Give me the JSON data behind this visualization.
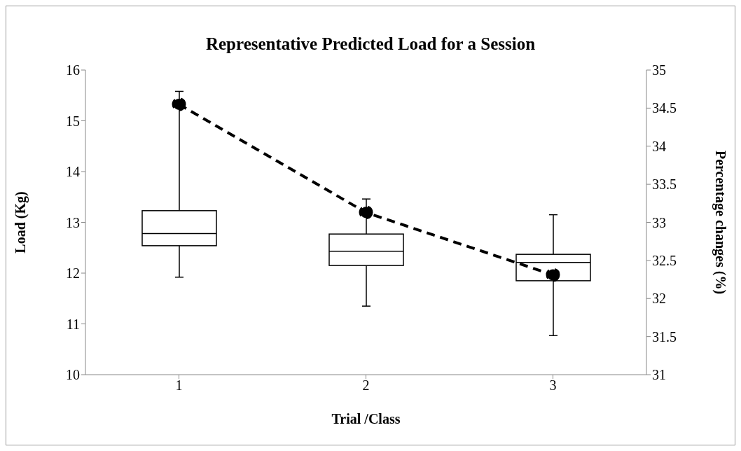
{
  "chart_data": {
    "type": "box",
    "title": "Representative Predicted Load for a Session",
    "xlabel": "Trial /Class",
    "ylabel": "Load (Kg)",
    "y2label": "Percentage changes (%)",
    "categories": [
      "1",
      "2",
      "3"
    ],
    "ylim": [
      10,
      16
    ],
    "yticks": [
      10,
      11,
      12,
      13,
      14,
      15,
      16
    ],
    "y2lim": [
      31,
      35
    ],
    "y2ticks": [
      31,
      31.5,
      32,
      32.5,
      33,
      33.5,
      34,
      34.5,
      35
    ],
    "grid": false,
    "series": [
      {
        "color": "#000000",
        "boxes": [
          {
            "low": 11.92,
            "q1": 12.54,
            "median": 12.78,
            "q3": 13.23,
            "high": 15.58
          },
          {
            "low": 11.35,
            "q1": 12.15,
            "median": 12.43,
            "q3": 12.77,
            "high": 13.46
          },
          {
            "low": 10.77,
            "q1": 11.85,
            "median": 12.21,
            "q3": 12.37,
            "high": 13.15
          }
        ]
      },
      {
        "type": "line",
        "axis": "y2",
        "color": "#000000",
        "values": [
          34.55,
          33.13,
          32.31
        ],
        "marker": "circle",
        "line_style": "dashed"
      }
    ]
  }
}
